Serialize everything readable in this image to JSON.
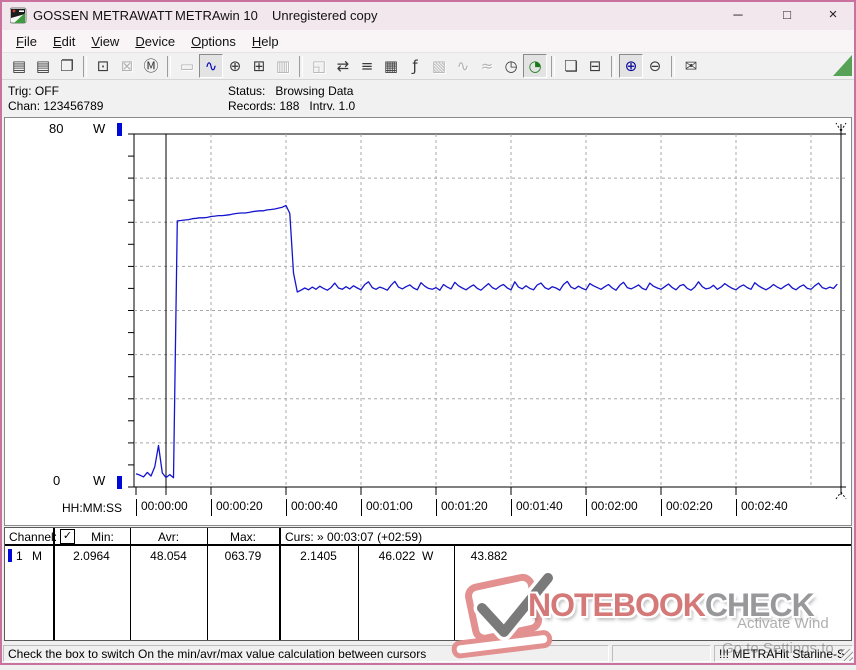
{
  "window": {
    "title_app": "GOSSEN METRAWATT",
    "title_product": "METRAwin 10",
    "title_status": "Unregistered copy",
    "minimize": "─",
    "maximize": "□",
    "close": "×"
  },
  "menu": {
    "items": [
      "File",
      "Edit",
      "View",
      "Device",
      "Options",
      "Help"
    ]
  },
  "toolbar": {
    "buttons": [
      {
        "name": "save-icon",
        "glyph": "▤",
        "state": "normal"
      },
      {
        "name": "save-as-icon",
        "glyph": "▤",
        "state": "normal"
      },
      {
        "name": "open-file-icon",
        "glyph": "❐",
        "state": "normal"
      },
      {
        "sep": true
      },
      {
        "name": "read-device-icon",
        "glyph": "⊡",
        "state": "normal"
      },
      {
        "name": "device-offline-icon",
        "glyph": "⊠",
        "state": "disabled"
      },
      {
        "name": "read-memory-icon",
        "glyph": "Ⓜ",
        "state": "normal"
      },
      {
        "sep": true
      },
      {
        "name": "lcd-display-icon",
        "glyph": "▭",
        "state": "disabled"
      },
      {
        "name": "chart-view-icon",
        "glyph": "∿",
        "state": "active",
        "color": "#0000bb"
      },
      {
        "name": "cursor-crosshair-icon",
        "glyph": "⊕",
        "state": "normal"
      },
      {
        "name": "table-view-icon",
        "glyph": "⊞",
        "state": "normal"
      },
      {
        "name": "histogram-view-icon",
        "glyph": "▥",
        "state": "disabled"
      },
      {
        "sep": true
      },
      {
        "name": "export-icon",
        "glyph": "◱",
        "state": "disabled"
      },
      {
        "name": "transfer-device-icon",
        "glyph": "⇄",
        "state": "normal"
      },
      {
        "name": "channel-config-icon",
        "glyph": "≡",
        "state": "normal"
      },
      {
        "name": "monitor-settings-icon",
        "glyph": "▦",
        "state": "normal"
      },
      {
        "name": "formula-icon",
        "glyph": "ƒ",
        "state": "normal"
      },
      {
        "name": "remote-display-icon",
        "glyph": "▧",
        "state": "disabled"
      },
      {
        "name": "wave-single-icon",
        "glyph": "∿",
        "state": "disabled"
      },
      {
        "name": "wave-multi-icon",
        "glyph": "≈",
        "state": "disabled"
      },
      {
        "name": "time-sync-icon",
        "glyph": "◷",
        "state": "normal"
      },
      {
        "name": "timer-icon",
        "glyph": "◔",
        "state": "active",
        "color": "#1a7a1a"
      },
      {
        "sep": true
      },
      {
        "name": "print-preview-icon",
        "glyph": "❏",
        "state": "normal"
      },
      {
        "name": "print-icon",
        "glyph": "⊟",
        "state": "normal"
      },
      {
        "sep": true
      },
      {
        "name": "zoom-in-icon",
        "glyph": "⊕",
        "state": "active",
        "color": "#000099"
      },
      {
        "name": "zoom-out-icon",
        "glyph": "⊖",
        "state": "normal"
      },
      {
        "sep": true
      },
      {
        "name": "comment-icon",
        "glyph": "✉",
        "state": "normal"
      }
    ]
  },
  "status_panel": {
    "trig_label": "Trig:",
    "trig_value": "OFF",
    "chan_label": "Chan:",
    "chan_value": "123456789",
    "status_label": "Status:",
    "status_value": "Browsing Data",
    "records_label": "Records:",
    "records_value": "188",
    "interval_label": "Intrv.",
    "interval_value": "1.0"
  },
  "chart": {
    "y_max_label": "80",
    "y_min_label": "0",
    "y_unit": "W",
    "x_axis_label": "HH:MM:SS",
    "x_ticks": [
      "00:00:00",
      "00:00:20",
      "00:00:40",
      "00:01:00",
      "00:01:20",
      "00:01:40",
      "00:02:00",
      "00:02:20",
      "00:02:40"
    ]
  },
  "chart_data": {
    "type": "line",
    "title": "",
    "xlabel": "HH:MM:SS",
    "ylabel": "W",
    "ylim": [
      0,
      80
    ],
    "y_gridline_step_w": 10,
    "y_tick_step_w": 5,
    "x_tick_step_s": 20,
    "interval_s": 1.0,
    "records": 188,
    "cursor1_s": 8,
    "cursor2_s": 188,
    "grid": true,
    "series": [
      {
        "name": "1 M",
        "unit": "W",
        "color": "#1515cd",
        "values": [
          3.0,
          2.7,
          2.3,
          3.3,
          2.5,
          4.6,
          9.4,
          3.2,
          2.14,
          2.8,
          2.1,
          60.3,
          60.4,
          60.5,
          60.6,
          60.8,
          60.9,
          61.0,
          61.0,
          61.1,
          61.3,
          61.4,
          61.5,
          61.5,
          61.6,
          61.7,
          61.9,
          62.0,
          62.1,
          62.1,
          62.2,
          62.4,
          62.5,
          62.6,
          62.6,
          62.8,
          62.9,
          63.0,
          63.2,
          63.4,
          63.8,
          62.0,
          48.5,
          44.2,
          44.6,
          45.1,
          44.7,
          45.3,
          44.8,
          45.5,
          45.0,
          44.6,
          45.2,
          46.2,
          45.1,
          44.8,
          45.4,
          44.9,
          45.6,
          45.1,
          44.7,
          45.9,
          46.5,
          45.2,
          44.8,
          45.3,
          45.0,
          44.6,
          45.7,
          46.6,
          45.3,
          44.9,
          45.4,
          45.8,
          45.1,
          44.7,
          46.3,
          45.5,
          45.0,
          44.8,
          45.2,
          44.6,
          45.9,
          45.3,
          44.9,
          46.4,
          45.6,
          45.1,
          44.7,
          45.3,
          45.8,
          45.0,
          44.6,
          45.4,
          46.1,
          45.2,
          44.8,
          45.5,
          45.9,
          45.1,
          44.7,
          46.5,
          45.3,
          44.9,
          45.6,
          45.0,
          44.7,
          45.8,
          46.2,
          45.2,
          44.8,
          45.4,
          45.1,
          44.6,
          45.9,
          46.6,
          45.3,
          44.9,
          45.5,
          45.0,
          44.7,
          46.1,
          45.6,
          45.2,
          44.8,
          45.4,
          45.9,
          45.1,
          44.6,
          45.7,
          46.4,
          45.2,
          44.9,
          45.3,
          45.8,
          45.0,
          44.7,
          46.2,
          45.5,
          45.1,
          44.8,
          45.4,
          46.0,
          45.2,
          44.7,
          45.6,
          45.9,
          45.0,
          44.6,
          45.3,
          46.5,
          45.4,
          44.9,
          45.1,
          45.7,
          44.8,
          45.3,
          46.1,
          45.5,
          45.0,
          44.7,
          45.4,
          45.8,
          45.2,
          44.8,
          46.3,
          45.6,
          45.1,
          44.7,
          45.2,
          45.9,
          45.3,
          44.9,
          45.5,
          46.0,
          45.1,
          44.7,
          45.4,
          45.8,
          45.0,
          44.8,
          45.6,
          46.2,
          45.2,
          44.9,
          45.3,
          45.0,
          46.0
        ]
      }
    ]
  },
  "values_table": {
    "channel_header": "Channel:",
    "min_header": "Min:",
    "avr_header": "Avr:",
    "max_header": "Max:",
    "curs_label": "Curs:",
    "curs_value": "» 00:03:07 (+02:59)",
    "checkbox_checked": "✓",
    "row": {
      "channel": "1",
      "mode": "M",
      "min": "2.0964",
      "avr": "48.054",
      "max": "063.79",
      "cursor1": "2.1405",
      "cursor2": "46.022",
      "cursor2_unit": "W",
      "delta": "43.882"
    }
  },
  "status_bar": {
    "message": "Check the box to switch On the min/avr/max value calculation between cursors",
    "device": "!!! METRAHit Starline-S"
  },
  "watermark": {
    "brand_primary": "NOTEBOOK",
    "brand_secondary": "CHECK",
    "activate_line1": "Activate Wind",
    "activate_line2": "Go to Settings to"
  },
  "colors": {
    "curve": "#1515cd",
    "window_border": "#c9729e",
    "titlebar_bg": "#f3e7ee",
    "grid": "#a8a8a8",
    "brand_red": "#d47878",
    "brand_gray": "#98989a",
    "triangle_green": "#57a257"
  }
}
